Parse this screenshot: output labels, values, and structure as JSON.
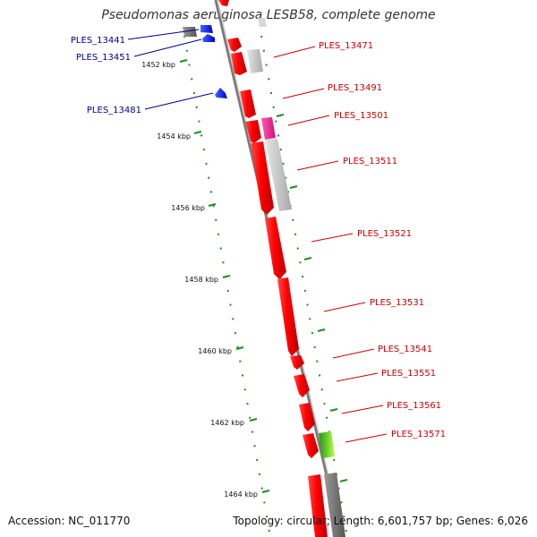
{
  "title": "Pseudomonas aeruginosa LESB58, complete genome",
  "footer": {
    "accession": "Accession: NC_011770",
    "stats": "Topology: circular; Length: 6,601,757 bp; Genes: 6,026"
  },
  "colors": {
    "forward_cds": "#ff0000",
    "reverse_cds": "#0000ff",
    "trna": "#ff1493",
    "ticks": "#228b22",
    "blue_label": "#00008b",
    "red_label": "#cc0000"
  },
  "kbp_labels": [
    "1452 kbp",
    "1454 kbp",
    "1456 kbp",
    "1458 kbp",
    "1460 kbp",
    "1462 kbp",
    "1464 kbp"
  ],
  "blue_labels": [
    "PLES_13441",
    "PLES_13451",
    "PLES_13481"
  ],
  "red_labels": [
    "PLES_13471",
    "PLES_13491",
    "PLES_13501",
    "PLES_13511",
    "PLES_13521",
    "PLES_13531",
    "PLES_13541",
    "PLES_13551",
    "PLES_13561",
    "PLES_13571"
  ]
}
